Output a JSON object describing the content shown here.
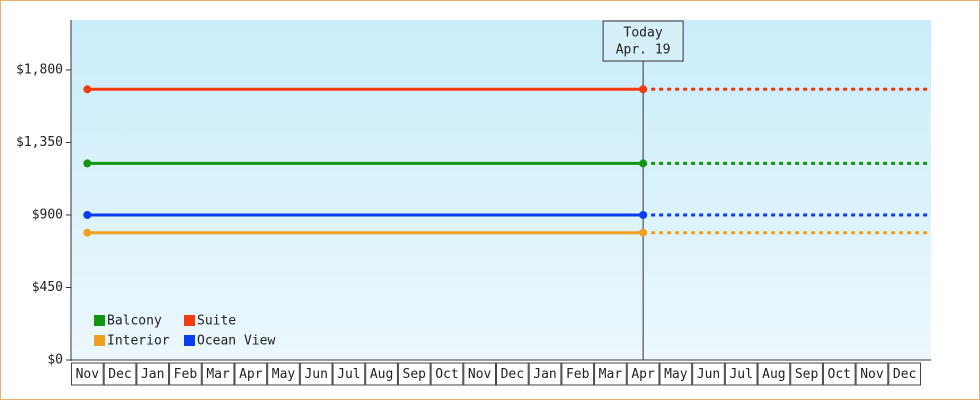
{
  "chart_data": {
    "type": "line",
    "categories": [
      "Nov",
      "Dec",
      "Jan",
      "Feb",
      "Mar",
      "Apr",
      "May",
      "Jun",
      "Jul",
      "Aug",
      "Sep",
      "Oct",
      "Nov",
      "Dec",
      "Jan",
      "Feb",
      "Mar",
      "Apr",
      "May",
      "Jun",
      "Jul",
      "Aug",
      "Sep",
      "Oct",
      "Nov",
      "Dec"
    ],
    "series": [
      {
        "name": "Balcony",
        "color": "#129612",
        "values": [
          1220,
          1220,
          1220,
          1220,
          1220,
          1220,
          1220,
          1220,
          1220,
          1220,
          1220,
          1220,
          1220,
          1220,
          1220,
          1220,
          1220,
          1220,
          null,
          null,
          null,
          null,
          null,
          null,
          null,
          null
        ]
      },
      {
        "name": "Suite",
        "color": "#f03c0f",
        "values": [
          1680,
          1680,
          1680,
          1680,
          1680,
          1680,
          1680,
          1680,
          1680,
          1680,
          1680,
          1680,
          1680,
          1680,
          1680,
          1680,
          1680,
          1680,
          null,
          null,
          null,
          null,
          null,
          null,
          null,
          null
        ]
      },
      {
        "name": "Interior",
        "color": "#f0a01e",
        "values": [
          790,
          790,
          790,
          790,
          790,
          790,
          790,
          790,
          790,
          790,
          790,
          790,
          790,
          790,
          790,
          790,
          790,
          790,
          null,
          null,
          null,
          null,
          null,
          null,
          null,
          null
        ]
      },
      {
        "name": "Ocean View",
        "color": "#0a3cf0",
        "values": [
          900,
          900,
          900,
          900,
          900,
          900,
          900,
          900,
          900,
          900,
          900,
          900,
          900,
          900,
          900,
          900,
          900,
          900,
          null,
          null,
          null,
          null,
          null,
          null,
          null,
          null
        ]
      }
    ],
    "today_label": "Today",
    "today_date": "Apr. 19",
    "ylim": [
      0,
      2110
    ],
    "yticks": [
      {
        "value": 0,
        "label": "$0"
      },
      {
        "value": 450,
        "label": "$450"
      },
      {
        "value": 900,
        "label": "$900"
      },
      {
        "value": 1350,
        "label": "$1,350"
      },
      {
        "value": 1800,
        "label": "$1,800"
      }
    ],
    "legend": "lower left"
  }
}
